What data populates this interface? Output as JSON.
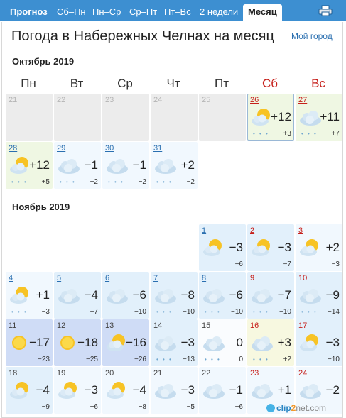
{
  "tabs": [
    {
      "label": "Прогноз"
    },
    {
      "label": "Сб–Пн"
    },
    {
      "label": "Пн–Ср"
    },
    {
      "label": "Ср–Пт"
    },
    {
      "label": "Пт–Вс"
    },
    {
      "label": "2 недели"
    },
    {
      "label": "Месяц"
    }
  ],
  "print_icon": "printer-icon",
  "title": "Погода в Набережных Челнах на месяц",
  "my_city_link": "Мой город",
  "colors": {
    "tab_bar": "#3d8fd1",
    "weekend": "#c6201b",
    "link": "#2a6fb0"
  },
  "weekdays": [
    "Пн",
    "Вт",
    "Ср",
    "Чт",
    "Пт",
    "Сб",
    "Вс"
  ],
  "months": [
    {
      "title": "Октябрь 2019",
      "weeks": [
        [
          {
            "day": "21",
            "past": true
          },
          {
            "day": "22",
            "past": true
          },
          {
            "day": "23",
            "past": true
          },
          {
            "day": "24",
            "past": true
          },
          {
            "day": "25",
            "past": true
          },
          {
            "day": "26",
            "icon": "sun-cloud-icon",
            "temp": "+12",
            "min": "+3",
            "precip": true,
            "weekend": true,
            "link": true,
            "bg": "green",
            "today": true
          },
          {
            "day": "27",
            "icon": "cloud-icon",
            "temp": "+11",
            "min": "+7",
            "precip": true,
            "weekend": true,
            "link": true,
            "bg": "green"
          }
        ],
        [
          {
            "day": "28",
            "icon": "sun-cloud-icon",
            "temp": "+12",
            "min": "+5",
            "precip": true,
            "link": true,
            "bg": "green"
          },
          {
            "day": "29",
            "icon": "cloud-icon",
            "temp": "−1",
            "min": "−2",
            "precip": true,
            "link": true,
            "bg": "ice"
          },
          {
            "day": "30",
            "icon": "cloud-icon",
            "temp": "−1",
            "min": "−2",
            "precip": true,
            "link": true,
            "bg": "ice"
          },
          {
            "day": "31",
            "icon": "cloud-icon",
            "temp": "+2",
            "min": "−2",
            "precip": true,
            "link": true,
            "bg": "ice"
          },
          null,
          null,
          null
        ]
      ]
    },
    {
      "title": "Ноябрь 2019",
      "weeks": [
        [
          null,
          null,
          null,
          null,
          {
            "day": "1",
            "icon": "sun-cloud-icon",
            "temp": "−3",
            "min": "−6",
            "link": true,
            "bg": "blue1"
          },
          {
            "day": "2",
            "icon": "sun-cloud-icon",
            "temp": "−3",
            "min": "−7",
            "weekend": true,
            "link": true,
            "bg": "blue1"
          },
          {
            "day": "3",
            "icon": "sun-cloud-icon",
            "temp": "+2",
            "min": "−3",
            "weekend": true,
            "link": true,
            "bg": "ice"
          }
        ],
        [
          {
            "day": "4",
            "icon": "sun-cloud-icon",
            "temp": "+1",
            "min": "−3",
            "precip": true,
            "link": true,
            "bg": "ice"
          },
          {
            "day": "5",
            "icon": "cloud-icon",
            "temp": "−4",
            "min": "−7",
            "link": true,
            "bg": "blue1"
          },
          {
            "day": "6",
            "icon": "cloud-icon",
            "temp": "−6",
            "min": "−10",
            "link": true,
            "bg": "blue1"
          },
          {
            "day": "7",
            "icon": "cloud-icon",
            "temp": "−8",
            "min": "−10",
            "precip": true,
            "link": true,
            "bg": "blue1"
          },
          {
            "day": "8",
            "icon": "cloud-icon",
            "temp": "−6",
            "min": "−10",
            "precip": true,
            "link": true,
            "bg": "blue1"
          },
          {
            "day": "9",
            "icon": "cloud-icon",
            "temp": "−7",
            "min": "−10",
            "precip": true,
            "weekend": true,
            "bg": "blue1"
          },
          {
            "day": "10",
            "icon": "cloud-icon",
            "temp": "−9",
            "min": "−14",
            "precip": true,
            "weekend": true,
            "bg": "blue1"
          }
        ],
        [
          {
            "day": "11",
            "icon": "sun-icon",
            "temp": "−17",
            "min": "−23",
            "bg": "blue3"
          },
          {
            "day": "12",
            "icon": "sun-icon",
            "temp": "−18",
            "min": "−25",
            "bg": "blue3"
          },
          {
            "day": "13",
            "icon": "sun-cloud-icon",
            "temp": "−16",
            "min": "−26",
            "bg": "blue3"
          },
          {
            "day": "14",
            "icon": "cloud-icon",
            "temp": "−3",
            "min": "−13",
            "precip": true,
            "bg": "blue1"
          },
          {
            "day": "15",
            "icon": "cloud-icon",
            "temp": "0",
            "min": "0",
            "precip": true,
            "bg": "white"
          },
          {
            "day": "16",
            "icon": "cloud-icon",
            "temp": "+3",
            "min": "+2",
            "precip": true,
            "weekend": true,
            "bg": "yellow"
          },
          {
            "day": "17",
            "icon": "sun-cloud-icon",
            "temp": "−3",
            "min": "−10",
            "weekend": true,
            "bg": "blue1"
          }
        ],
        [
          {
            "day": "18",
            "icon": "sun-cloud-icon",
            "temp": "−4",
            "min": "−9",
            "bg": "blue1"
          },
          {
            "day": "19",
            "icon": "sun-cloud-icon",
            "temp": "−3",
            "min": "−6",
            "bg": "ice"
          },
          {
            "day": "20",
            "icon": "sun-cloud-icon",
            "temp": "−4",
            "min": "−8",
            "bg": "ice"
          },
          {
            "day": "21",
            "icon": "cloud-icon",
            "temp": "−3",
            "min": "−5",
            "bg": "ice"
          },
          {
            "day": "22",
            "icon": "cloud-icon",
            "temp": "−1",
            "min": "−6",
            "bg": "ice"
          },
          {
            "day": "23",
            "icon": "cloud-icon",
            "temp": "+1",
            "min": "",
            "weekend": true,
            "bg": "ice"
          },
          {
            "day": "24",
            "icon": "cloud-icon",
            "temp": "−2",
            "min": "",
            "weekend": true,
            "bg": "ice"
          }
        ]
      ]
    }
  ],
  "watermark": {
    "a": "clip",
    "b": "2",
    "c": "net.com"
  }
}
